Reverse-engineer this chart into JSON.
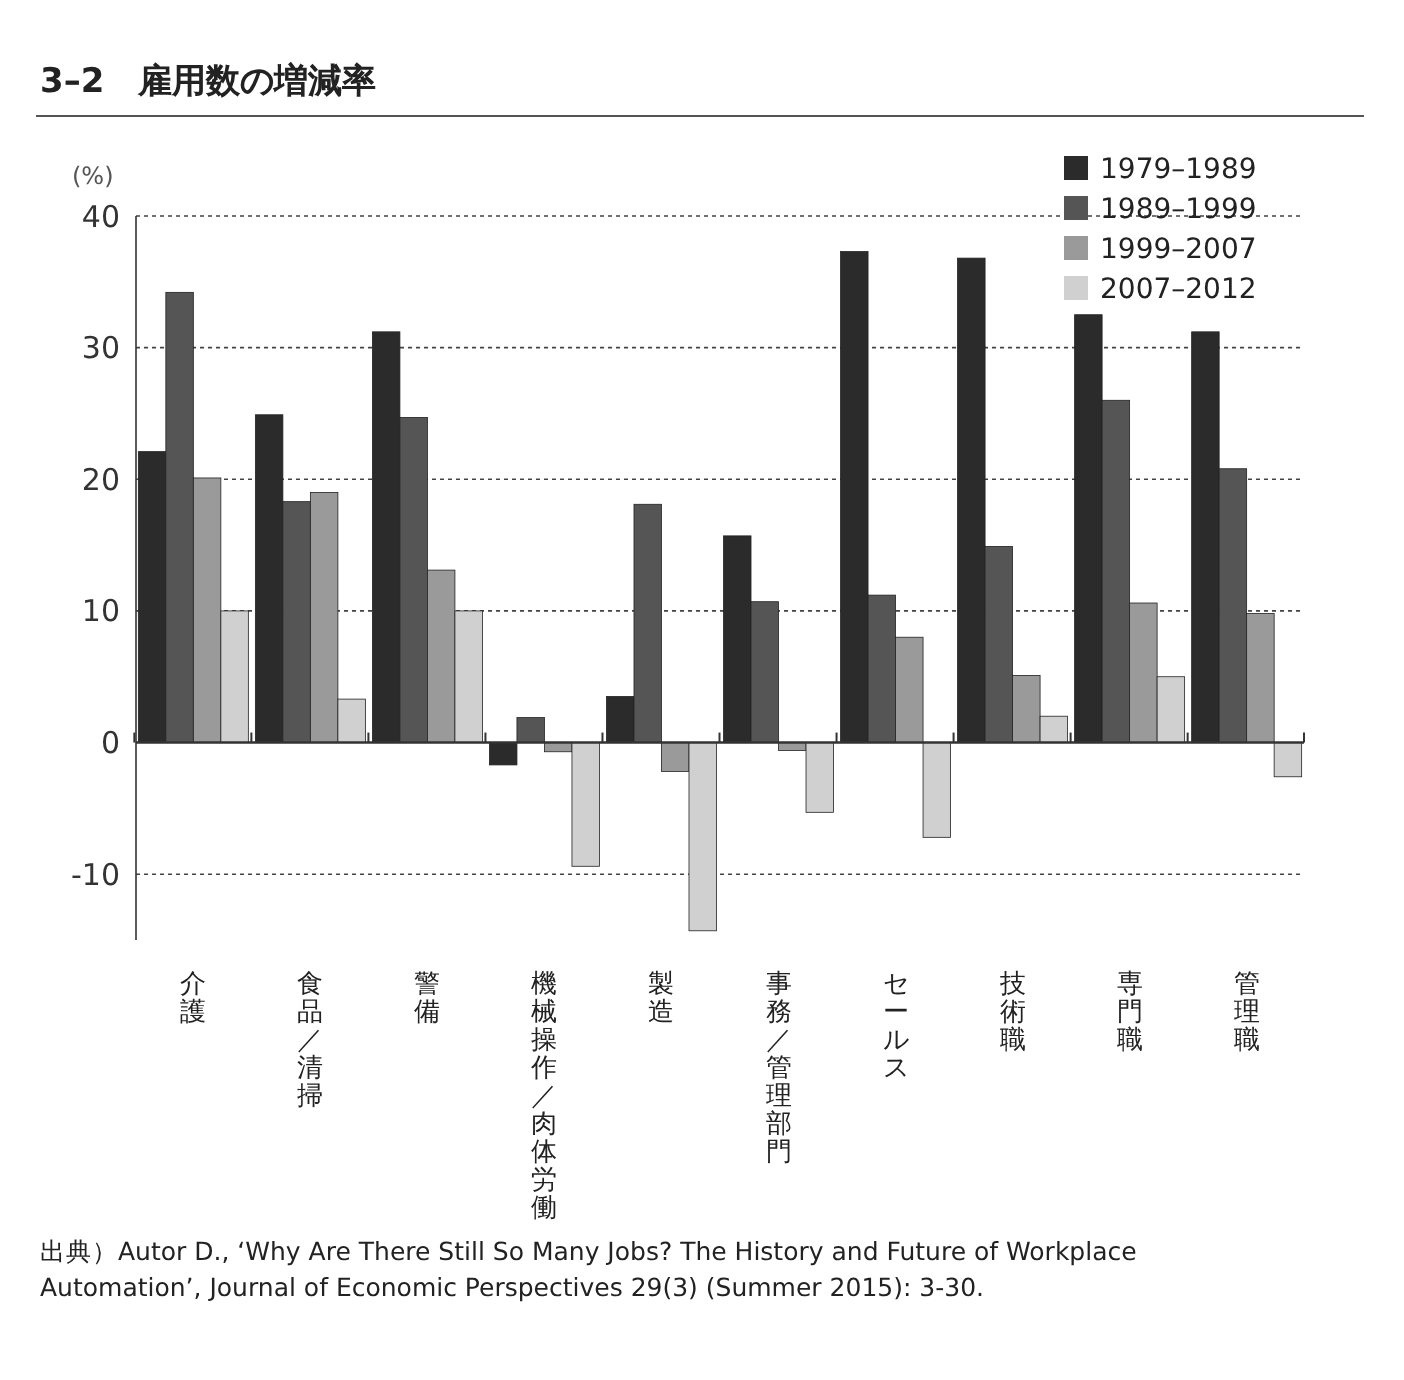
{
  "chart_data": {
    "type": "bar",
    "title": "3–2　雇用数の増減率",
    "ylabel": "(%)",
    "categories": [
      "介護",
      "食品／清掃",
      "警備",
      "機械操作／肉体労働",
      "製造",
      "事務／管理部門",
      "セールス",
      "技術職",
      "専門職",
      "管理職"
    ],
    "series": [
      {
        "name": "1979–1989",
        "color": "#2b2b2b",
        "values": [
          22.1,
          24.9,
          31.2,
          -1.7,
          3.5,
          15.7,
          37.3,
          36.8,
          32.5,
          31.2
        ]
      },
      {
        "name": "1989–1999",
        "color": "#555555",
        "values": [
          34.2,
          18.3,
          24.7,
          1.9,
          18.1,
          10.7,
          11.2,
          14.9,
          26.0,
          20.8
        ]
      },
      {
        "name": "1999–2007",
        "color": "#9a9a9a",
        "values": [
          20.1,
          19.0,
          13.1,
          -0.7,
          -2.2,
          -0.6,
          8.0,
          5.1,
          10.6,
          9.8
        ]
      },
      {
        "name": "2007–2012",
        "color": "#d0d0d0",
        "values": [
          10.0,
          3.3,
          10.0,
          -9.4,
          -14.3,
          -5.3,
          -7.2,
          2.0,
          5.0,
          -2.6
        ]
      }
    ],
    "ylim": [
      -15,
      40
    ],
    "yticks": [
      -10,
      0,
      10,
      20,
      30,
      40
    ],
    "grid": "y",
    "legend": "top right",
    "annotations": [
      "出典）Autor D., ‘Why Are There Still So Many Jobs? The History and Future of Workplace Automation’, Journal of Economic Perspectives 29(3) (Summer 2015): 3-30."
    ]
  }
}
